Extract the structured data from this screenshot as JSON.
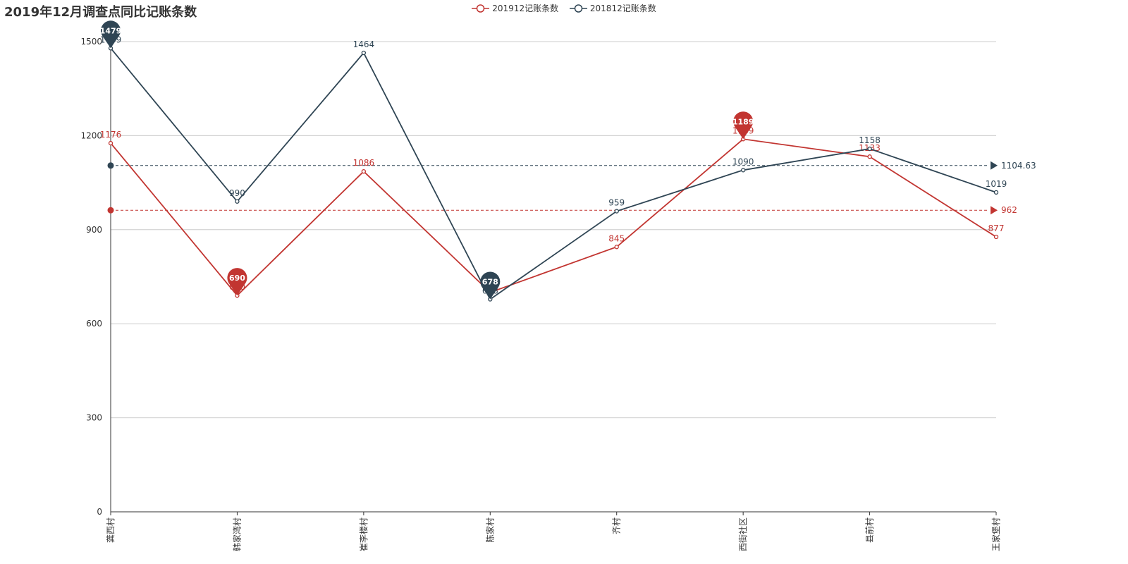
{
  "colors": {
    "series_2019": "#c23531",
    "series_2018": "#2f4554"
  },
  "chart_data": {
    "type": "line",
    "title": "2019年12月调查点同比记账条数",
    "categories": [
      "龚西村",
      "韩家湾村",
      "崔李楼村",
      "陈家村",
      "齐村",
      "西街社区",
      "县前村",
      "王家堡村"
    ],
    "series": [
      {
        "name": "201912记账条数",
        "values": [
          1176,
          690,
          1086,
          700,
          845,
          1189,
          1133,
          877
        ],
        "average": 962,
        "max": 1189,
        "min": 690
      },
      {
        "name": "201812记账条数",
        "values": [
          1479,
          990,
          1464,
          678,
          959,
          1090,
          1158,
          1019
        ],
        "average": 1104.63,
        "max": 1479,
        "min": 678
      }
    ],
    "ylim": [
      0,
      1500
    ],
    "yticks": [
      0,
      300,
      600,
      900,
      1200,
      1500
    ],
    "grid": true,
    "legend_position": "top-center"
  }
}
